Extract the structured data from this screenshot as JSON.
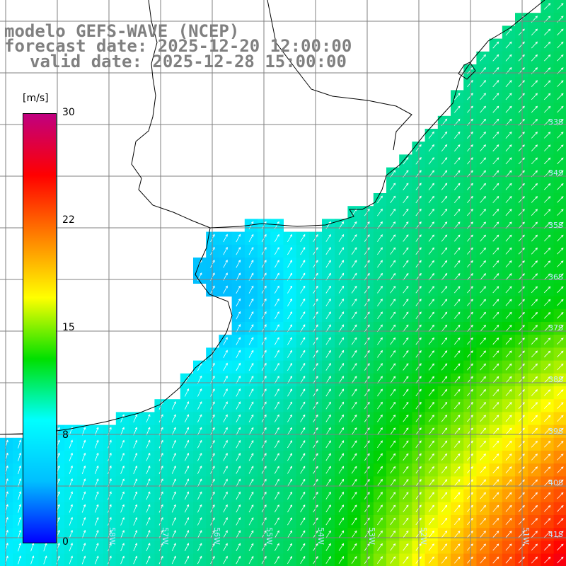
{
  "title": {
    "line1": "modelo GEFS-WAVE (NCEP)",
    "line2": "forecast date: 2025-12-20 12:00:00",
    "line3": "valid date: 2025-12-28 15:00:00"
  },
  "colorbar": {
    "units": "[m/s]",
    "min": 0,
    "max": 30,
    "ticks": [
      {
        "value": 30,
        "label": "30"
      },
      {
        "value": 22,
        "label": "22"
      },
      {
        "value": 15,
        "label": "15"
      },
      {
        "value": 8,
        "label": "8"
      },
      {
        "value": 0,
        "label": "0"
      }
    ],
    "colors": [
      "#0000ff",
      "#00bfff",
      "#00ffff",
      "#00e000",
      "#ffff00",
      "#ff8000",
      "#ff0000",
      "#c00080"
    ]
  },
  "latitude_labels": [
    "33S",
    "34S",
    "35S",
    "36S",
    "37S",
    "38S",
    "39S",
    "40S",
    "41S"
  ],
  "longitude_labels": [
    "58W",
    "57W",
    "56W",
    "55W",
    "54W",
    "53W",
    "52W",
    "51W"
  ],
  "colors": {
    "land": "#ffffff",
    "coastline": "#000000",
    "grid": "#808080",
    "title": "#808080",
    "arrow": "#ffffff"
  }
}
